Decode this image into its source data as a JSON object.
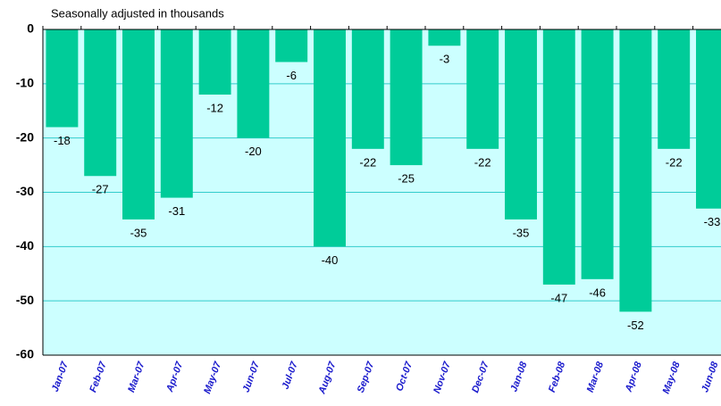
{
  "chart_data": {
    "type": "bar",
    "subtitle": "Seasonally adjusted in thousands",
    "categories": [
      "Jan-07",
      "Feb-07",
      "Mar-07",
      "Apr-07",
      "May-07",
      "Jun-07",
      "Jul-07",
      "Aug-07",
      "Sep-07",
      "Oct-07",
      "Nov-07",
      "Dec-07",
      "Jan-08",
      "Feb-08",
      "Mar-08",
      "Apr-08",
      "May-08",
      "Jun-08"
    ],
    "values": [
      -18,
      -27,
      -35,
      -31,
      -12,
      -20,
      -6,
      -40,
      -22,
      -25,
      -3,
      -22,
      -35,
      -47,
      -46,
      -52,
      -22,
      -33
    ],
    "color": "#00cc99",
    "background": "#ccffff",
    "grid_color": "#33cccc",
    "ylim": [
      -60,
      0
    ],
    "yticks": [
      0,
      -10,
      -20,
      -30,
      -40,
      -50,
      -60
    ],
    "grid": true
  }
}
